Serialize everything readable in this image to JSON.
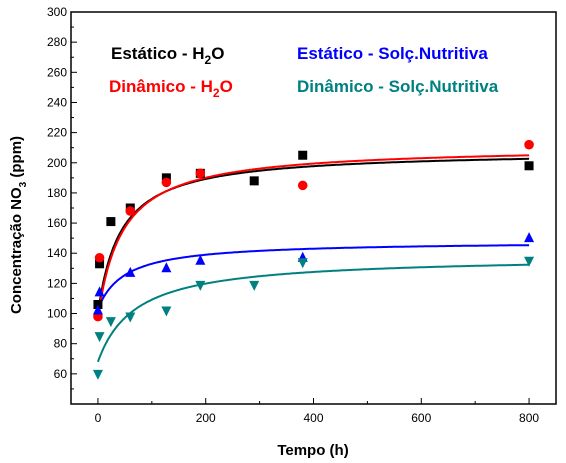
{
  "chart_data": {
    "type": "scatter",
    "xlabel": "Tempo (h)",
    "ylabel_main": "Concentração NO",
    "ylabel_sub": "3",
    "ylabel_tail": " (ppm)",
    "xlim": [
      -50,
      850
    ],
    "ylim": [
      40,
      300
    ],
    "xticks": [
      0,
      200,
      400,
      600,
      800
    ],
    "yticks": [
      60,
      80,
      100,
      120,
      140,
      160,
      180,
      200,
      220,
      240,
      260,
      280,
      300
    ],
    "grid": false,
    "legend_placement": "top, inside plot (two columns)",
    "series": [
      {
        "name": "Estático - H2O",
        "legend_main": "Estático - H",
        "legend_sub": "2",
        "legend_tail": "O",
        "color": "#000000",
        "marker": "square",
        "x": [
          0,
          3,
          24,
          60,
          127,
          190,
          290,
          380,
          800
        ],
        "y": [
          106,
          133,
          161,
          170,
          190,
          193,
          188,
          205,
          198
        ],
        "fit": {
          "a": 100,
          "b": 108,
          "k": 42
        }
      },
      {
        "name": "Dinâmico - H2O",
        "legend_main": "Dinâmico - H",
        "legend_sub": "2",
        "legend_tail": "O",
        "color": "#ff0000",
        "marker": "circle",
        "x": [
          0,
          3,
          60,
          127,
          190,
          380,
          800
        ],
        "y": [
          98,
          137,
          168,
          187,
          193,
          185,
          212
        ],
        "fit": {
          "a": 97,
          "b": 114,
          "k": 45
        }
      },
      {
        "name": "Estático - Solç.Nutritiva",
        "legend_main": "Estático - Solç.Nutritiva",
        "legend_sub": "",
        "legend_tail": "",
        "color": "#0000ff",
        "marker": "triangle-up",
        "x": [
          0,
          3,
          60,
          127,
          190,
          380,
          800
        ],
        "y": [
          102,
          114,
          127,
          130,
          135,
          137,
          150
        ],
        "fit": {
          "a": 103,
          "b": 45,
          "k": 50
        }
      },
      {
        "name": "Dinâmico - Solç.Nutritiva",
        "legend_main": "Dinâmico - Solç.Nutritiva",
        "legend_sub": "",
        "legend_tail": "",
        "color": "#008080",
        "marker": "triangle-down",
        "x": [
          0,
          3,
          24,
          60,
          127,
          190,
          290,
          380,
          800
        ],
        "y": [
          60,
          85,
          95,
          98,
          102,
          119,
          119,
          134,
          135
        ],
        "fit": {
          "a": 68,
          "b": 70,
          "k": 70
        }
      }
    ]
  }
}
